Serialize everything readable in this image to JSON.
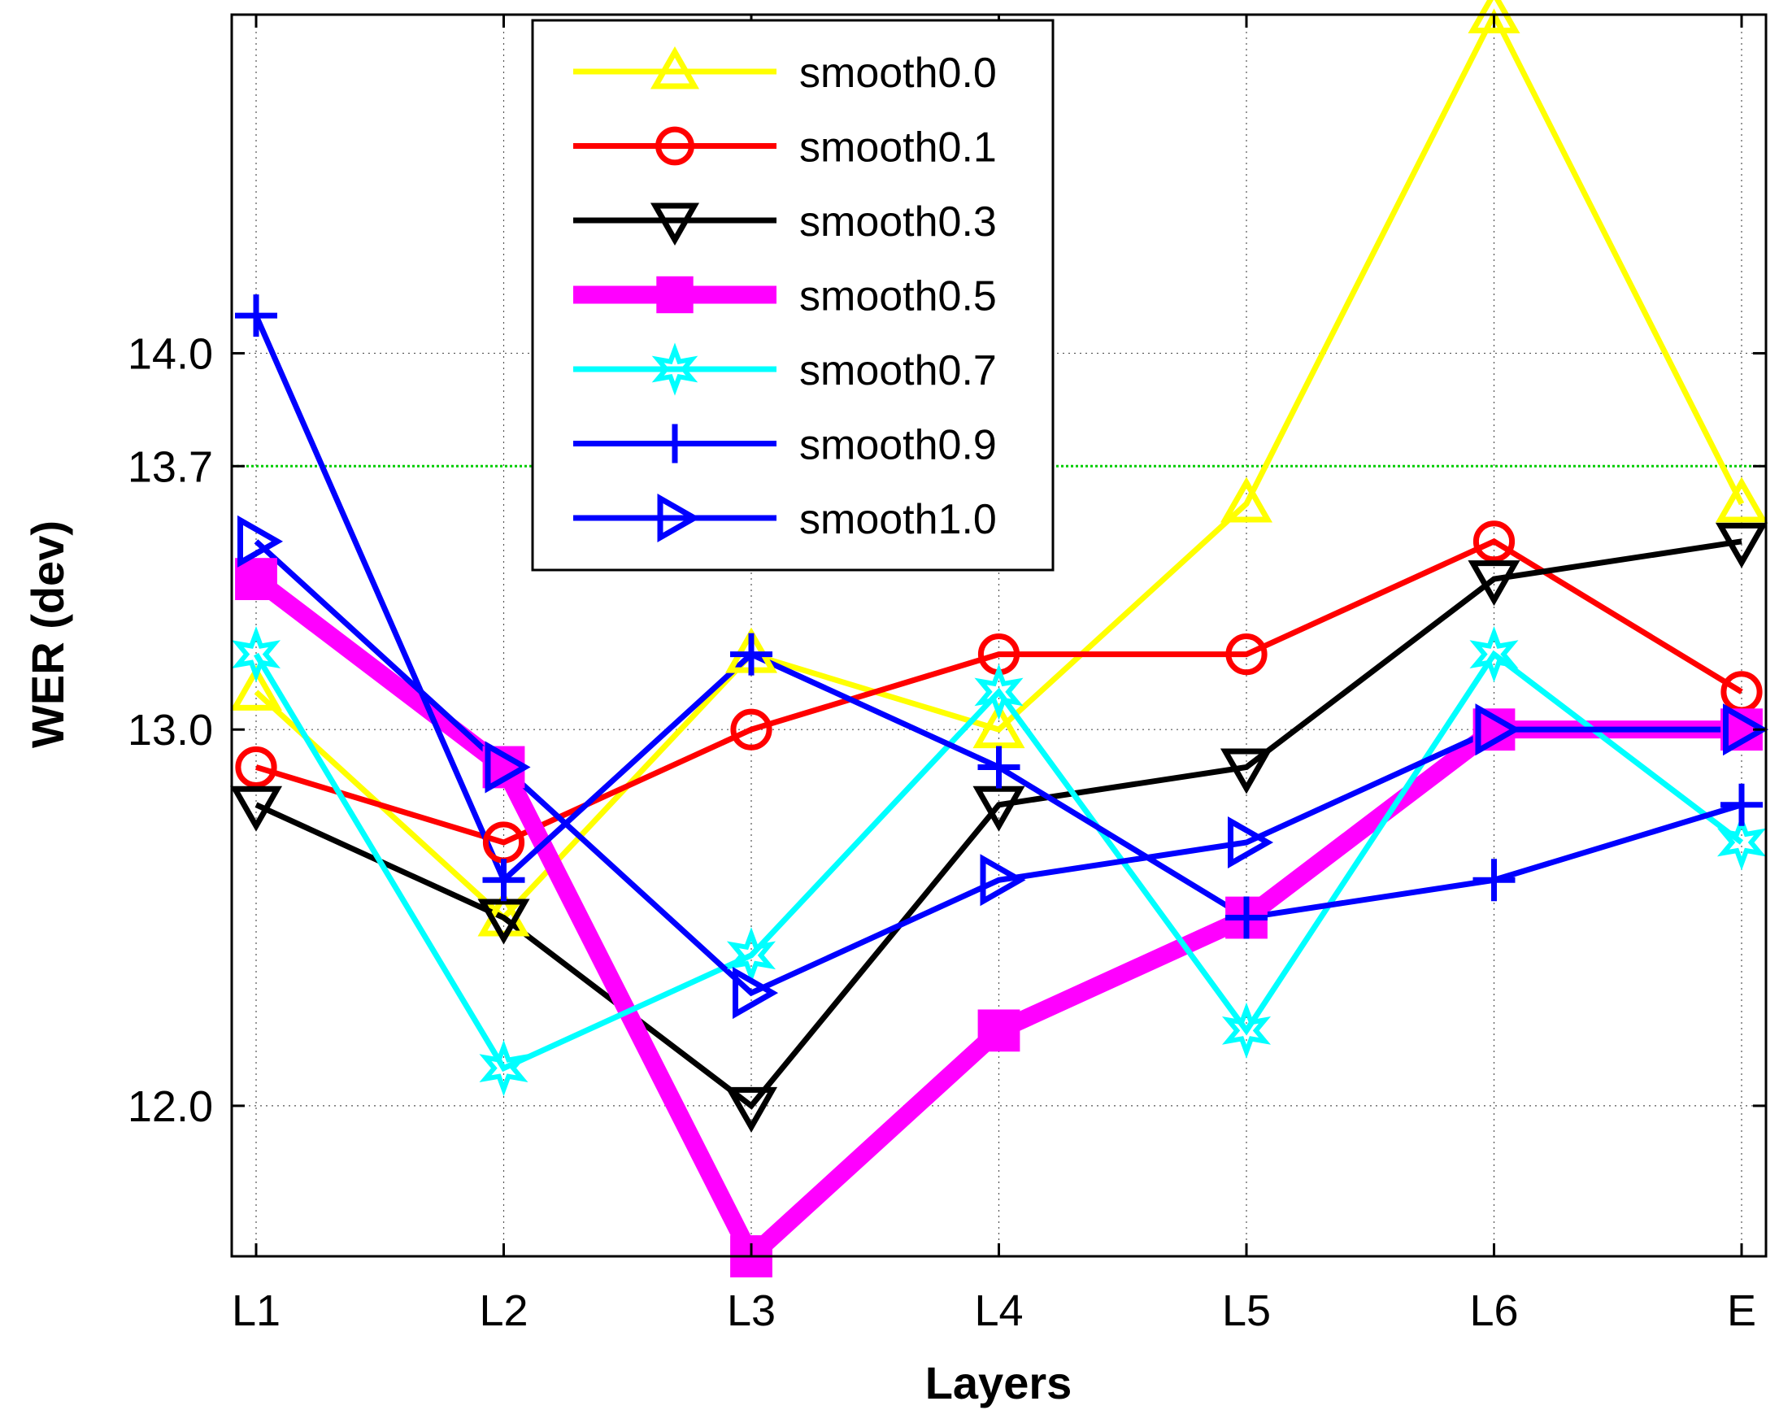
{
  "chart_data": {
    "type": "line",
    "title": "",
    "xlabel": "Layers",
    "ylabel": "WER (dev)",
    "categories": [
      "L1",
      "L2",
      "L3",
      "L4",
      "L5",
      "L6",
      "E"
    ],
    "ylim": [
      11.6,
      14.9
    ],
    "yticks": [
      "12.0",
      "13.0",
      "13.7",
      "14.0"
    ],
    "ytick_values": [
      12.0,
      13.0,
      13.7,
      14.0
    ],
    "reference_line": {
      "value": 13.7,
      "color": "#00cc00"
    },
    "grid": true,
    "legend_position": "top-center",
    "series": [
      {
        "name": "smooth0.0",
        "color": "#ffff00",
        "marker": "triangle-up",
        "values": [
          13.1,
          12.5,
          13.2,
          13.0,
          13.6,
          14.9,
          13.6
        ]
      },
      {
        "name": "smooth0.1",
        "color": "#ff0000",
        "marker": "circle",
        "values": [
          12.9,
          12.7,
          13.0,
          13.2,
          13.2,
          13.5,
          13.1
        ]
      },
      {
        "name": "smooth0.3",
        "color": "#000000",
        "marker": "triangle-down",
        "values": [
          12.8,
          12.5,
          12.0,
          12.8,
          12.9,
          13.4,
          13.5
        ]
      },
      {
        "name": "smooth0.5",
        "color": "#ff00ff",
        "marker": "square",
        "values": [
          13.4,
          12.9,
          11.6,
          12.2,
          12.5,
          13.0,
          13.0
        ]
      },
      {
        "name": "smooth0.7",
        "color": "#00ffff",
        "marker": "star",
        "values": [
          13.2,
          12.1,
          12.4,
          13.1,
          12.2,
          13.2,
          12.7
        ]
      },
      {
        "name": "smooth0.9",
        "color": "#0000ff",
        "marker": "plus",
        "values": [
          14.1,
          12.6,
          13.2,
          12.9,
          12.5,
          12.6,
          12.8
        ]
      },
      {
        "name": "smooth1.0",
        "color": "#0000ff",
        "marker": "triangle-right",
        "values": [
          13.5,
          12.9,
          12.3,
          12.6,
          12.7,
          13.0,
          13.0
        ]
      }
    ]
  }
}
